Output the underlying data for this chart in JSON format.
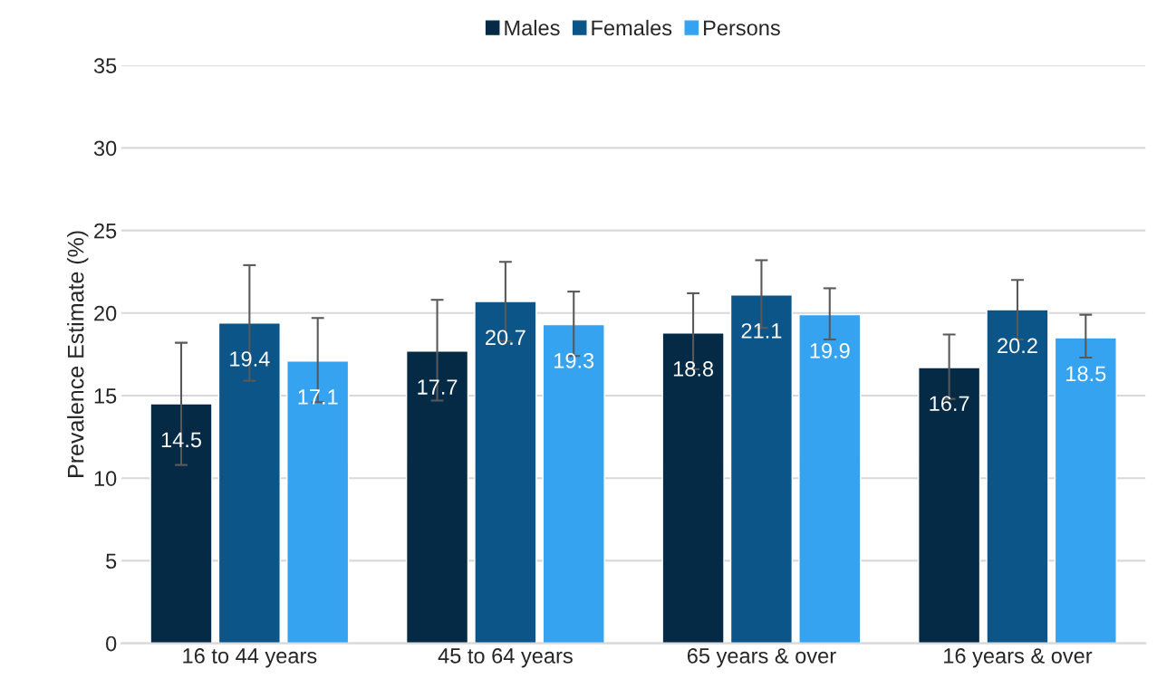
{
  "chart_data": {
    "type": "bar",
    "ylabel": "Prevalence Estimate (%)",
    "categories": [
      "16 to 44 years",
      "45 to 64 years",
      "65 years & over",
      "16 years & over"
    ],
    "series": [
      {
        "name": "Males",
        "color": "#042a45",
        "values": [
          14.5,
          17.7,
          18.8,
          16.7
        ],
        "errors": [
          [
            10.8,
            18.2
          ],
          [
            14.7,
            20.8
          ],
          [
            16.6,
            21.2
          ],
          [
            14.8,
            18.7
          ]
        ]
      },
      {
        "name": "Females",
        "color": "#0b5588",
        "values": [
          19.4,
          20.7,
          21.1,
          20.2
        ],
        "errors": [
          [
            15.9,
            22.9
          ],
          [
            18.3,
            23.1
          ],
          [
            19.1,
            23.2
          ],
          [
            18.4,
            22.0
          ]
        ]
      },
      {
        "name": "Persons",
        "color": "#35a3f0",
        "values": [
          17.1,
          19.3,
          19.9,
          18.5
        ],
        "errors": [
          [
            14.6,
            19.7
          ],
          [
            17.4,
            21.3
          ],
          [
            18.4,
            21.5
          ],
          [
            17.3,
            19.9
          ]
        ]
      }
    ],
    "ylim": [
      0,
      35
    ],
    "yticks": [
      0,
      5,
      10,
      15,
      20,
      25,
      30,
      35
    ],
    "grid": "y",
    "legend": "top",
    "data_labels": true
  }
}
